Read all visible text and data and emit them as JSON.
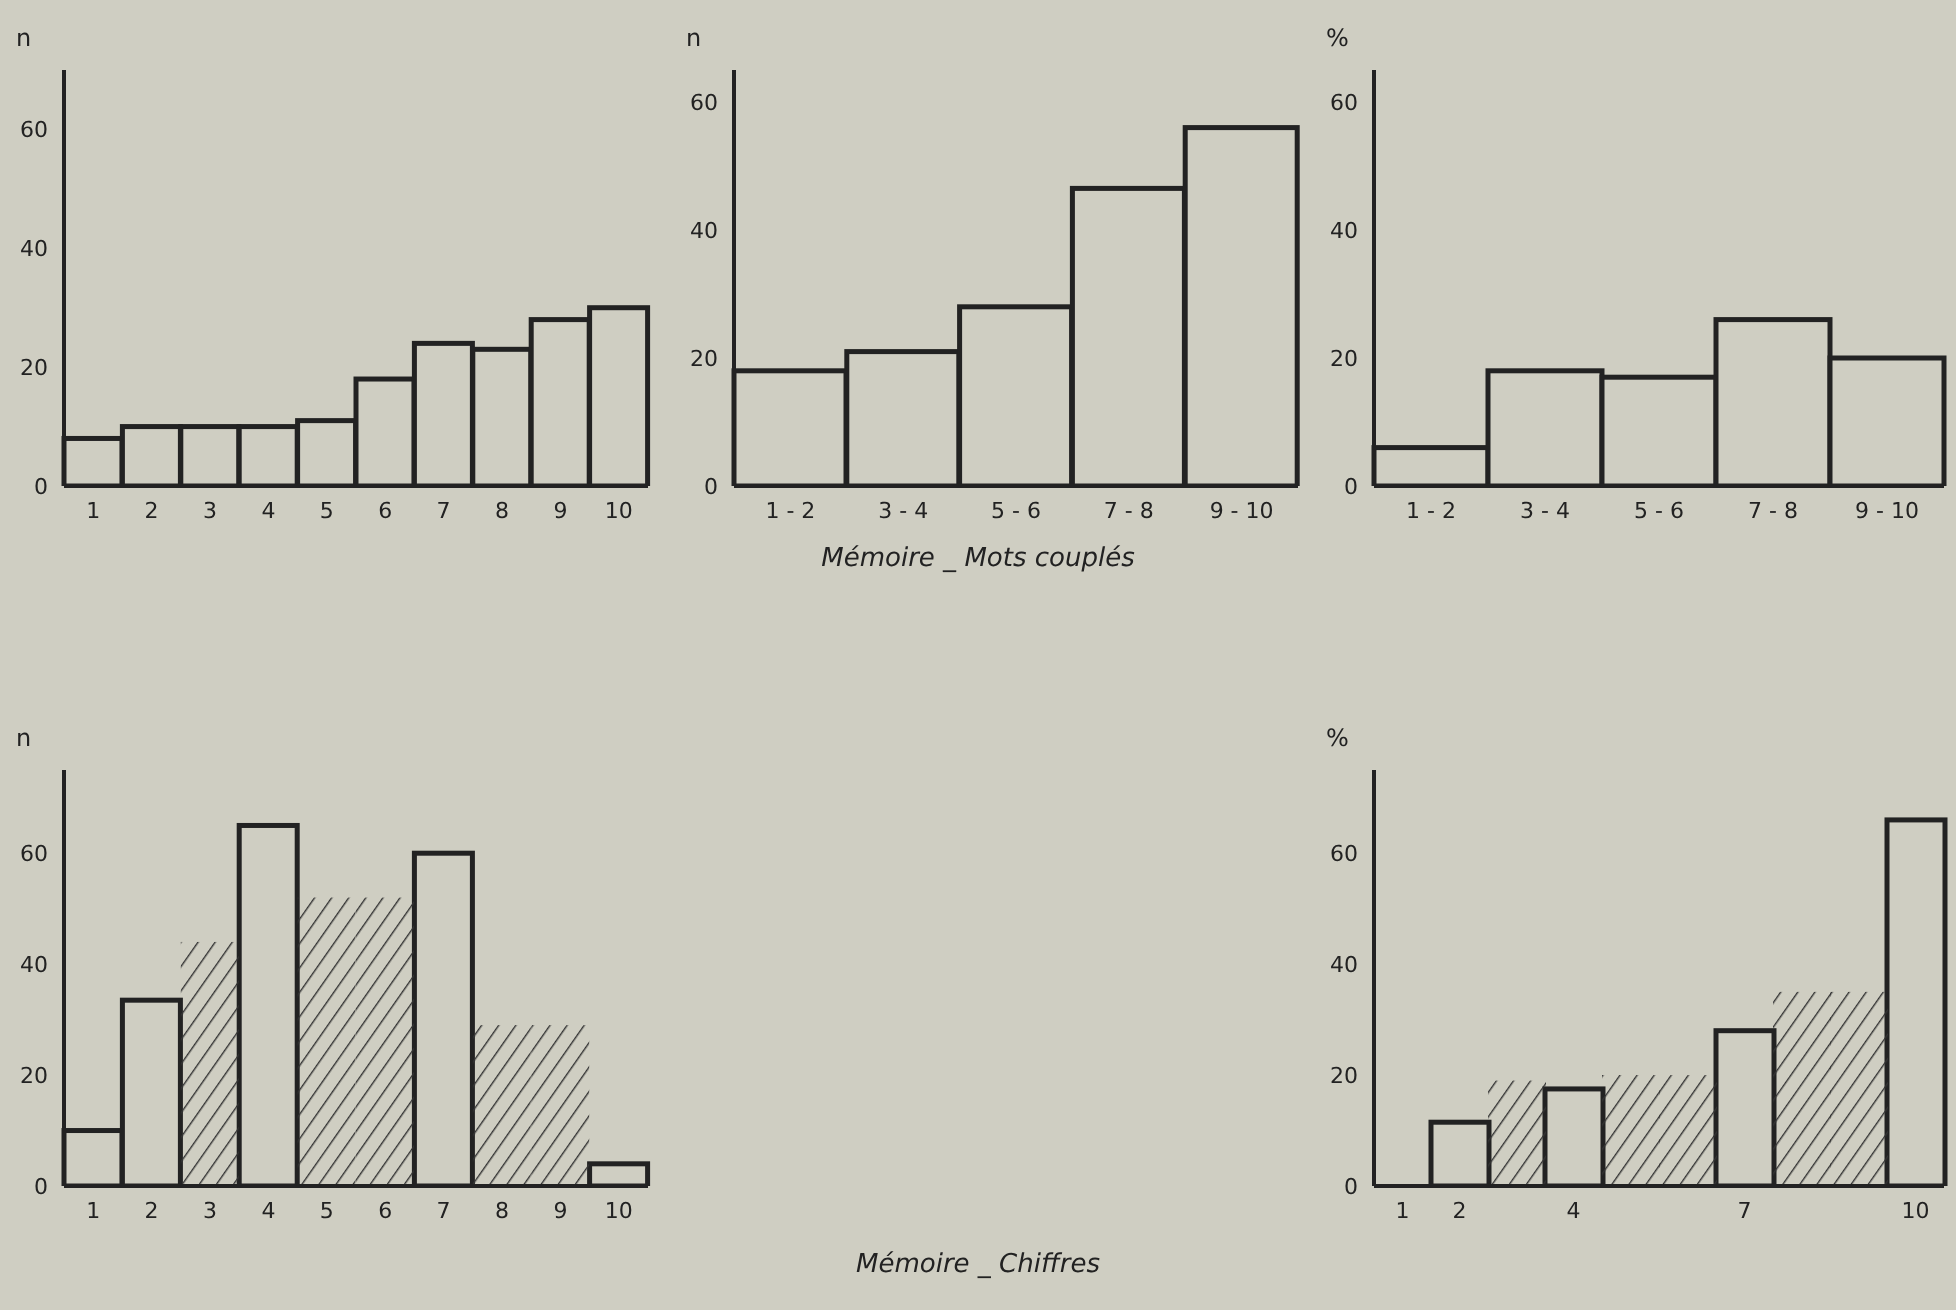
{
  "chart_data": [
    {
      "type": "bar",
      "ylabel": "n",
      "categories": [
        "1",
        "2",
        "3",
        "4",
        "5",
        "6",
        "7",
        "8",
        "9",
        "10"
      ],
      "values": [
        8,
        10,
        10,
        10,
        11,
        18,
        24,
        23,
        28,
        30
      ],
      "color": "#222222",
      "ylim": [
        0,
        70
      ],
      "yticks": [
        0,
        20,
        40,
        60
      ]
    },
    {
      "type": "bar",
      "ylabel": "n",
      "categories": [
        "1 - 2",
        "3 - 4",
        "5 - 6",
        "7 - 8",
        "9 - 10"
      ],
      "values": [
        18,
        21,
        28,
        46.5,
        56
      ],
      "color": "#222222",
      "ylim": [
        0,
        65
      ],
      "yticks": [
        0,
        20,
        40,
        60
      ],
      "annotations": [
        "Mémoire _ Mots couplés"
      ]
    },
    {
      "type": "bar",
      "ylabel": "%",
      "categories": [
        "1 - 2",
        "3 - 4",
        "5 - 6",
        "7 - 8",
        "9 - 10"
      ],
      "values": [
        6,
        18,
        17,
        26,
        20
      ],
      "color": "#222222",
      "ylim": [
        0,
        65
      ],
      "yticks": [
        0,
        20,
        40,
        60
      ]
    },
    {
      "type": "bar",
      "ylabel": "n",
      "categories": [
        "1",
        "2",
        "3",
        "4",
        "5",
        "6",
        "7",
        "8",
        "9",
        "10"
      ],
      "ylim": [
        0,
        75
      ],
      "yticks": [
        0,
        20,
        40,
        60
      ],
      "annotations": [
        "Mémoire _ Chiffres"
      ],
      "series": [
        {
          "color": "#222222",
          "values": [
            10,
            33.5,
            null,
            65,
            null,
            null,
            60,
            null,
            null,
            4
          ]
        },
        {
          "color": "#333333",
          "values": [
            null,
            null,
            44,
            null,
            52,
            52,
            null,
            29,
            29,
            null
          ]
        }
      ]
    },
    {
      "type": "bar",
      "ylabel": "%",
      "categories": [
        "1",
        "2",
        null,
        "4",
        null,
        null,
        "7",
        null,
        null,
        "10"
      ],
      "ylim": [
        0,
        75
      ],
      "yticks": [
        0,
        20,
        40,
        60
      ],
      "series": [
        {
          "color": "#222222",
          "values": [
            null,
            11.5,
            null,
            17.5,
            null,
            null,
            28,
            null,
            null,
            66
          ]
        },
        {
          "color": "#333333",
          "values": [
            null,
            null,
            19,
            null,
            20,
            20,
            null,
            35,
            35,
            null
          ]
        }
      ]
    }
  ]
}
